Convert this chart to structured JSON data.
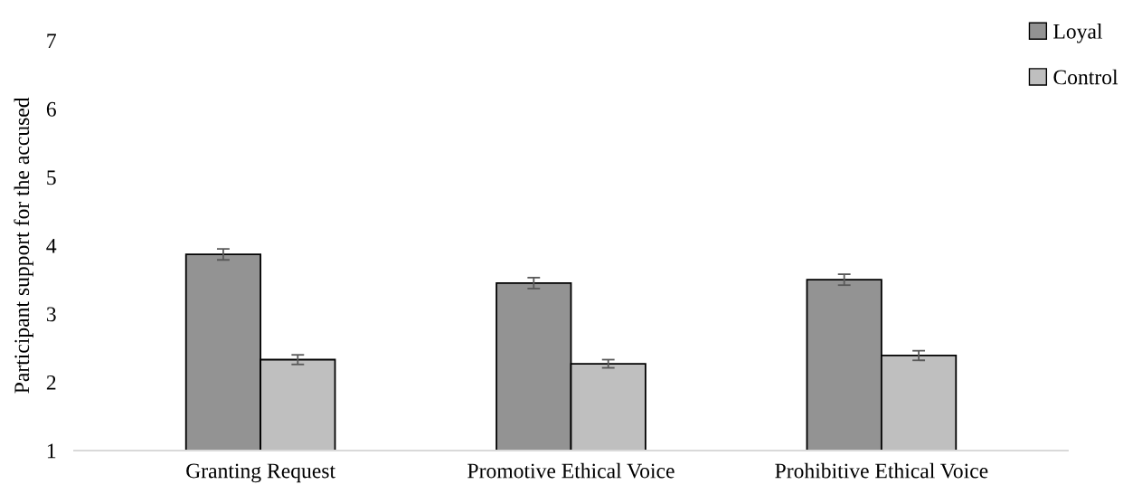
{
  "chart_data": {
    "type": "bar",
    "ylabel": "Participant support for the accused",
    "categories": [
      "Granting Request",
      "Promotive Ethical Voice",
      "Prohibitive Ethical Voice"
    ],
    "series": [
      {
        "name": "Loyal",
        "color": "#939393",
        "values": [
          3.87,
          3.45,
          3.5
        ],
        "errors": [
          0.08,
          0.08,
          0.08
        ]
      },
      {
        "name": "Control",
        "color": "#bfbfbf",
        "values": [
          2.33,
          2.27,
          2.39
        ],
        "errors": [
          0.07,
          0.06,
          0.07
        ]
      }
    ],
    "ylim": [
      1,
      7
    ],
    "yticks": [
      1,
      2,
      3,
      4,
      5,
      6,
      7
    ],
    "grid": false,
    "legend": "top right"
  }
}
